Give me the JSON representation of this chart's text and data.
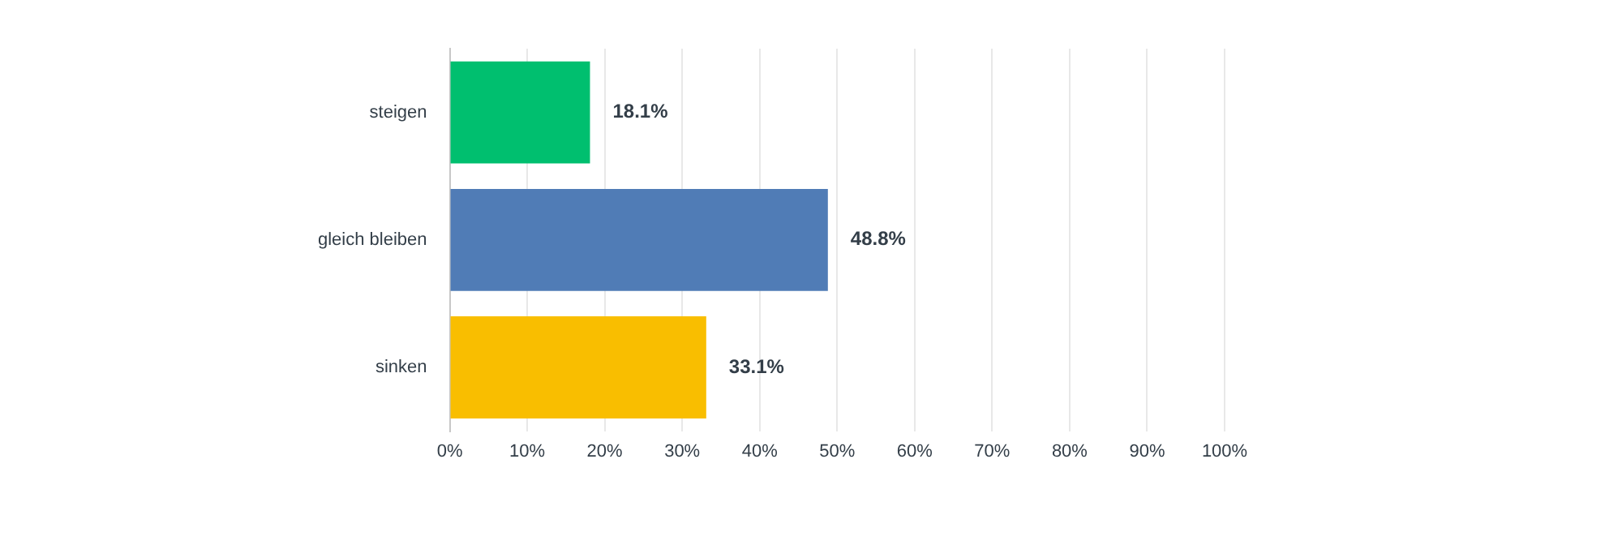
{
  "chart_data": {
    "type": "bar",
    "orientation": "horizontal",
    "categories": [
      "steigen",
      "gleich bleiben",
      "sinken"
    ],
    "values": [
      18.1,
      48.8,
      33.1
    ],
    "colors": [
      "#00bf6f",
      "#507cb6",
      "#f9be00"
    ],
    "value_labels": [
      "18.1%",
      "48.8%",
      "33.1%"
    ],
    "xlim": [
      0,
      100
    ],
    "xticks": [
      {
        "value": 0,
        "label": "0%"
      },
      {
        "value": 10,
        "label": "10%"
      },
      {
        "value": 20,
        "label": "20%"
      },
      {
        "value": 30,
        "label": "30%"
      },
      {
        "value": 40,
        "label": "40%"
      },
      {
        "value": 50,
        "label": "50%"
      },
      {
        "value": 60,
        "label": "60%"
      },
      {
        "value": 70,
        "label": "70%"
      },
      {
        "value": 80,
        "label": "80%"
      },
      {
        "value": 90,
        "label": "90%"
      },
      {
        "value": 100,
        "label": "100%"
      }
    ],
    "grid": "x"
  }
}
